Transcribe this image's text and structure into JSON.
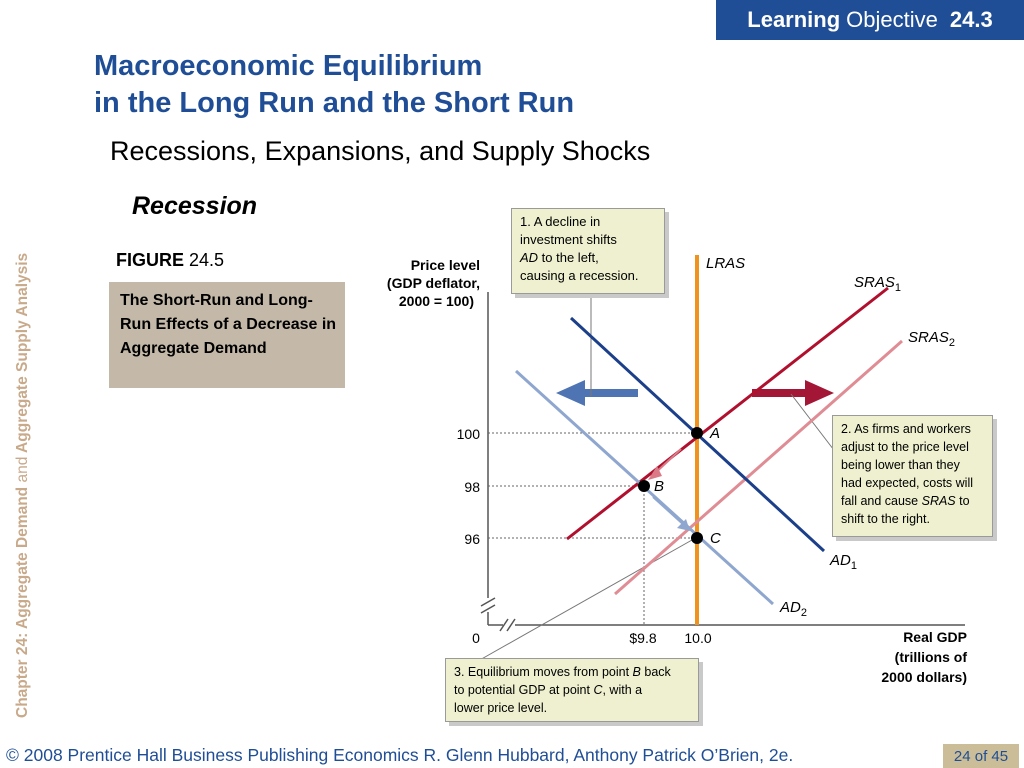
{
  "badge": {
    "bold": "Learning",
    "rest": "Objective",
    "number": "24.3"
  },
  "side": {
    "chapter": "Chapter 24:",
    "part1": "Aggregate Demand",
    "and": "and",
    "part2": "Aggregate Supply Analysis"
  },
  "title": {
    "line1": "Macroeconomic Equilibrium",
    "line2": "in the Long Run and the Short Run"
  },
  "subtitle": "Recessions, Expansions, and Supply Shocks",
  "section": "Recession",
  "figure": {
    "label_bold": "FIGURE",
    "number": "24.5",
    "caption": "The Short-Run and Long-Run Effects of a Decrease in Aggregate Demand"
  },
  "callouts": {
    "c1": {
      "l1": "1.  A decline in",
      "l2": "investment shifts",
      "l3a": "AD",
      "l3b": " to the left,",
      "l4": "causing a recession."
    },
    "c2": {
      "l1": "2. As firms and workers",
      "l2": "adjust to the price level",
      "l3": "being lower than they",
      "l4": "had expected, costs will",
      "l5a": "fall and cause ",
      "l5b": "SRAS",
      "l5c": " to",
      "l6": "shift to the right."
    },
    "c3": {
      "l1a": "3. Equilibrium moves from point ",
      "l1b": "B",
      "l1c": " back",
      "l2a": "to potential GDP at point ",
      "l2b": "C",
      "l2c": ", with a",
      "l3": "lower price level."
    }
  },
  "chart_data": {
    "type": "line",
    "ylabel": [
      "Price level",
      "(GDP deflator,",
      "2000 = 100)"
    ],
    "xlabel": [
      "Real GDP",
      "(trillions of",
      "2000 dollars)"
    ],
    "y_ticks": [
      "100",
      "98",
      "96"
    ],
    "x_ticks": [
      "$9.8",
      "10.0"
    ],
    "origin": "0",
    "curves": [
      {
        "name": "LRAS",
        "color": "#f0921e"
      },
      {
        "name": "SRAS",
        "sub": "1",
        "color": "#b0102e"
      },
      {
        "name": "SRAS",
        "sub": "2",
        "color": "#e08c94"
      },
      {
        "name": "AD",
        "sub": "1",
        "color": "#1c3f8a"
      },
      {
        "name": "AD",
        "sub": "2",
        "color": "#8fa7cf"
      }
    ],
    "points": [
      {
        "label": "A",
        "x": 10.0,
        "y": 100
      },
      {
        "label": "B",
        "x": 9.8,
        "y": 98
      },
      {
        "label": "C",
        "x": 10.0,
        "y": 96
      }
    ]
  },
  "footer": {
    "text": "© 2008 Prentice Hall Business Publishing   Economics  R. Glenn Hubbard, Anthony Patrick O’Brien, 2e.",
    "page": "24 of 45"
  }
}
